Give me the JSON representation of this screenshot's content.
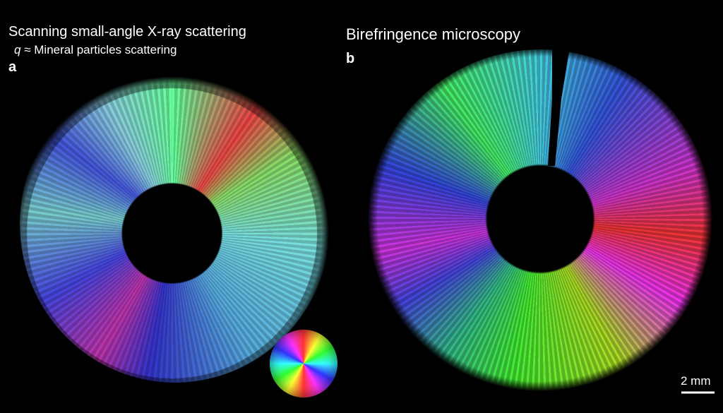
{
  "panel_a": {
    "title": "Scanning small-angle X-ray scattering",
    "subtitle_symbol": "q",
    "subtitle": "≈ Mineral particles scattering",
    "label": "a"
  },
  "panel_b": {
    "title": "Birefringence microscopy",
    "label": "b"
  },
  "scale_bar": {
    "label": "2 mm"
  }
}
